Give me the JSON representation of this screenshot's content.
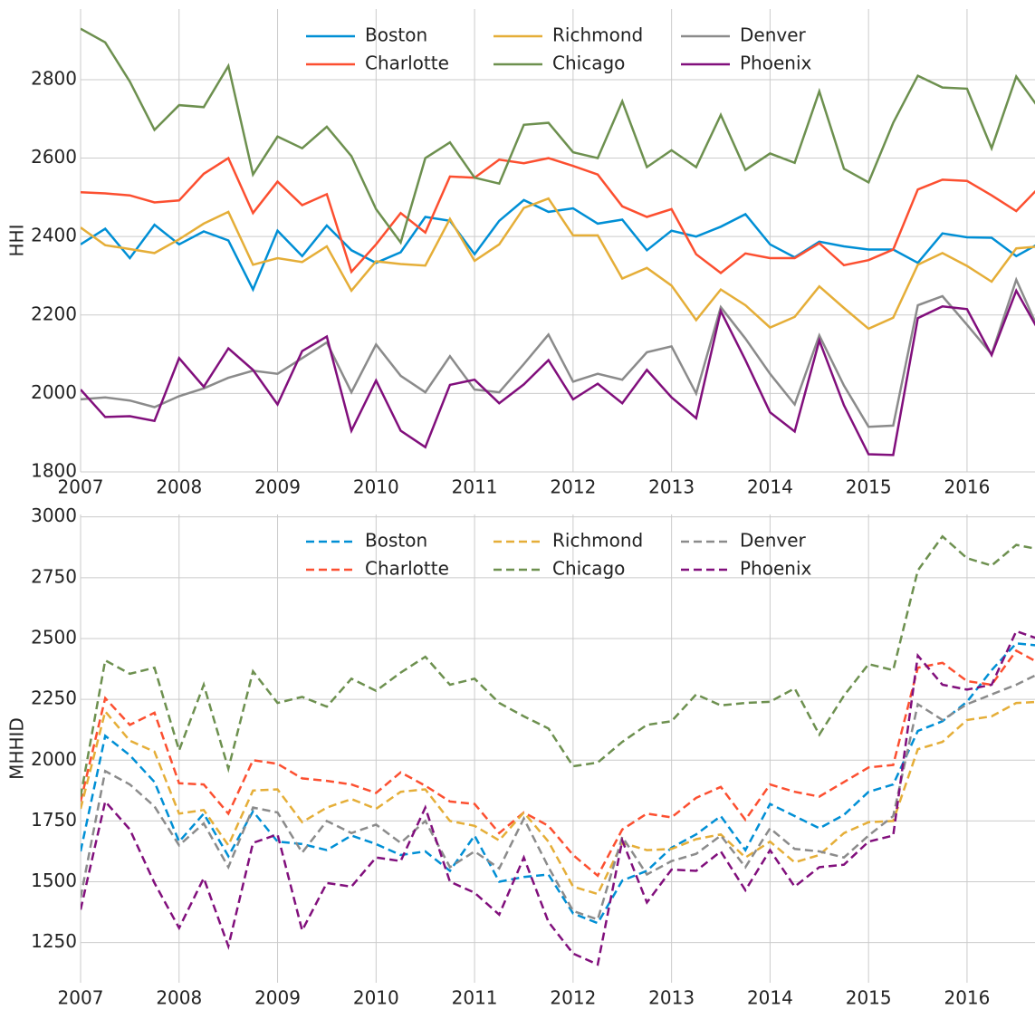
{
  "chart_data": [
    {
      "type": "line",
      "ylabel": "HHI",
      "linestyle": "solid",
      "grid": true,
      "legend": "top",
      "x": [
        2007,
        2007.25,
        2007.5,
        2007.75,
        2008,
        2008.25,
        2008.5,
        2008.75,
        2009,
        2009.25,
        2009.5,
        2009.75,
        2010,
        2010.25,
        2010.5,
        2010.75,
        2011,
        2011.25,
        2011.5,
        2011.75,
        2012,
        2012.25,
        2012.5,
        2012.75,
        2013,
        2013.25,
        2013.5,
        2013.75,
        2014,
        2014.25,
        2014.5,
        2014.75,
        2015,
        2015.25,
        2015.5,
        2015.75,
        2016,
        2016.25,
        2016.5,
        2016.75
      ],
      "xlim": [
        2007,
        2016.69
      ],
      "xticks": [
        2007,
        2008,
        2009,
        2010,
        2011,
        2012,
        2013,
        2014,
        2015,
        2016
      ],
      "ylim": [
        1800,
        2980
      ],
      "yticks": [
        1800,
        2000,
        2200,
        2400,
        2600,
        2800
      ],
      "series": [
        {
          "name": "Boston",
          "color": "#008fd5",
          "values": [
            2380,
            2420,
            2345,
            2430,
            2380,
            2413,
            2390,
            2265,
            2415,
            2350,
            2428,
            2365,
            2333,
            2360,
            2450,
            2440,
            2355,
            2440,
            2493,
            2463,
            2472,
            2433,
            2443,
            2365,
            2415,
            2400,
            2425,
            2457,
            2380,
            2347,
            2387,
            2375,
            2367,
            2367,
            2333,
            2408,
            2398,
            2397,
            2350,
            2385
          ]
        },
        {
          "name": "Charlotte",
          "color": "#fc4f30",
          "values": [
            2513,
            2510,
            2505,
            2487,
            2492,
            2560,
            2600,
            2460,
            2540,
            2480,
            2508,
            2310,
            2380,
            2460,
            2410,
            2553,
            2550,
            2596,
            2587,
            2600,
            2580,
            2558,
            2477,
            2450,
            2470,
            2355,
            2307,
            2357,
            2345,
            2345,
            2383,
            2327,
            2340,
            2367,
            2520,
            2545,
            2542,
            2505,
            2465,
            2530
          ]
        },
        {
          "name": "Richmond",
          "color": "#e5ae38",
          "values": [
            2423,
            2378,
            2368,
            2358,
            2393,
            2433,
            2463,
            2328,
            2345,
            2335,
            2375,
            2262,
            2337,
            2330,
            2326,
            2445,
            2338,
            2380,
            2473,
            2497,
            2403,
            2403,
            2293,
            2320,
            2275,
            2187,
            2265,
            2225,
            2168,
            2195,
            2273,
            2218,
            2165,
            2193,
            2328,
            2358,
            2325,
            2285,
            2370,
            2375
          ]
        },
        {
          "name": "Chicago",
          "color": "#6d904f",
          "values": [
            2930,
            2895,
            2795,
            2672,
            2735,
            2730,
            2835,
            2558,
            2655,
            2625,
            2680,
            2605,
            2470,
            2385,
            2600,
            2640,
            2550,
            2535,
            2685,
            2690,
            2615,
            2600,
            2745,
            2577,
            2620,
            2577,
            2710,
            2570,
            2612,
            2588,
            2770,
            2573,
            2538,
            2690,
            2810,
            2780,
            2777,
            2625,
            2808,
            2720
          ]
        },
        {
          "name": "Denver",
          "color": "#8b8b8b",
          "values": [
            1985,
            1990,
            1982,
            1965,
            1993,
            2013,
            2040,
            2058,
            2050,
            2090,
            2130,
            2003,
            2125,
            2045,
            2003,
            2095,
            2010,
            2003,
            2075,
            2150,
            2030,
            2050,
            2035,
            2105,
            2120,
            2000,
            2220,
            2140,
            2050,
            1972,
            2148,
            2020,
            1915,
            1918,
            2225,
            2248,
            2175,
            2100,
            2290,
            2150
          ]
        },
        {
          "name": "Phoenix",
          "color": "#810f7c",
          "values": [
            2010,
            1940,
            1942,
            1930,
            2090,
            2017,
            2115,
            2060,
            1972,
            2108,
            2145,
            1905,
            2033,
            1905,
            1863,
            2022,
            2035,
            1975,
            2023,
            2085,
            1985,
            2025,
            1975,
            2060,
            1990,
            1937,
            2210,
            2085,
            1952,
            1903,
            2135,
            1970,
            1845,
            1843,
            2192,
            2222,
            2215,
            2098,
            2262,
            2150
          ]
        }
      ]
    },
    {
      "type": "line",
      "ylabel": "MHHID",
      "linestyle": "dashed",
      "grid": true,
      "legend": "top",
      "x": [
        2007,
        2007.25,
        2007.5,
        2007.75,
        2008,
        2008.25,
        2008.5,
        2008.75,
        2009,
        2009.25,
        2009.5,
        2009.75,
        2010,
        2010.25,
        2010.5,
        2010.75,
        2011,
        2011.25,
        2011.5,
        2011.75,
        2012,
        2012.25,
        2012.5,
        2012.75,
        2013,
        2013.25,
        2013.5,
        2013.75,
        2014,
        2014.25,
        2014.5,
        2014.75,
        2015,
        2015.25,
        2015.5,
        2015.75,
        2016,
        2016.25,
        2016.5,
        2016.75
      ],
      "xlim": [
        2007,
        2016.69
      ],
      "xticks": [
        2007,
        2008,
        2009,
        2010,
        2011,
        2012,
        2013,
        2014,
        2015,
        2016
      ],
      "ylim": [
        1085,
        3010
      ],
      "yticks": [
        1250,
        1500,
        1750,
        2000,
        2250,
        2500,
        2750,
        3000
      ],
      "series": [
        {
          "name": "Boston",
          "color": "#008fd5",
          "values": [
            1625,
            2100,
            2020,
            1910,
            1665,
            1780,
            1605,
            1790,
            1665,
            1655,
            1630,
            1690,
            1655,
            1610,
            1625,
            1545,
            1690,
            1500,
            1520,
            1530,
            1370,
            1330,
            1505,
            1545,
            1640,
            1695,
            1770,
            1630,
            1820,
            1770,
            1720,
            1775,
            1870,
            1900,
            2120,
            2160,
            2240,
            2370,
            2480,
            2470
          ]
        },
        {
          "name": "Charlotte",
          "color": "#fc4f30",
          "values": [
            1830,
            2255,
            2145,
            2195,
            1905,
            1900,
            1780,
            2000,
            1985,
            1925,
            1915,
            1900,
            1865,
            1950,
            1895,
            1830,
            1820,
            1700,
            1785,
            1730,
            1610,
            1525,
            1715,
            1780,
            1765,
            1845,
            1890,
            1755,
            1900,
            1870,
            1850,
            1910,
            1970,
            1980,
            2380,
            2400,
            2325,
            2310,
            2450,
            2395
          ]
        },
        {
          "name": "Richmond",
          "color": "#e5ae38",
          "values": [
            1800,
            2200,
            2080,
            2035,
            1780,
            1795,
            1650,
            1875,
            1880,
            1745,
            1805,
            1840,
            1800,
            1870,
            1880,
            1750,
            1730,
            1670,
            1785,
            1665,
            1480,
            1450,
            1660,
            1630,
            1635,
            1675,
            1695,
            1600,
            1665,
            1580,
            1610,
            1700,
            1745,
            1750,
            2045,
            2075,
            2165,
            2180,
            2235,
            2240
          ]
        },
        {
          "name": "Chicago",
          "color": "#6d904f",
          "values": [
            1850,
            2410,
            2355,
            2380,
            2040,
            2310,
            1965,
            2365,
            2235,
            2260,
            2220,
            2335,
            2285,
            2360,
            2425,
            2310,
            2335,
            2235,
            2180,
            2130,
            1975,
            1990,
            2075,
            2145,
            2160,
            2270,
            2225,
            2235,
            2240,
            2295,
            2105,
            2265,
            2395,
            2370,
            2780,
            2920,
            2830,
            2800,
            2885,
            2865
          ]
        },
        {
          "name": "Denver",
          "color": "#8b8b8b",
          "values": [
            1435,
            1955,
            1900,
            1810,
            1650,
            1740,
            1560,
            1805,
            1785,
            1620,
            1750,
            1700,
            1735,
            1660,
            1750,
            1560,
            1625,
            1555,
            1760,
            1560,
            1380,
            1345,
            1685,
            1530,
            1585,
            1615,
            1690,
            1560,
            1720,
            1635,
            1625,
            1600,
            1690,
            1770,
            2230,
            2165,
            2230,
            2270,
            2310,
            2360
          ]
        },
        {
          "name": "Phoenix",
          "color": "#810f7c",
          "values": [
            1385,
            1830,
            1715,
            1495,
            1310,
            1515,
            1235,
            1660,
            1695,
            1300,
            1495,
            1480,
            1600,
            1585,
            1805,
            1500,
            1455,
            1365,
            1600,
            1335,
            1205,
            1160,
            1670,
            1415,
            1550,
            1545,
            1625,
            1465,
            1630,
            1480,
            1560,
            1570,
            1665,
            1690,
            2430,
            2310,
            2290,
            2310,
            2530,
            2495
          ]
        }
      ]
    }
  ]
}
